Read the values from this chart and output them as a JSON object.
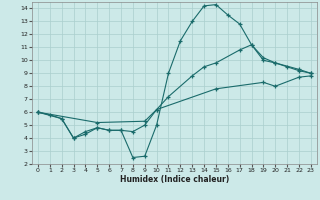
{
  "xlabel": "Humidex (Indice chaleur)",
  "bg_color": "#cce9e8",
  "grid_color": "#aacfce",
  "line_color": "#1a6b6b",
  "xlim": [
    -0.5,
    23.5
  ],
  "ylim": [
    2,
    14.5
  ],
  "xticks": [
    0,
    1,
    2,
    3,
    4,
    5,
    6,
    7,
    8,
    9,
    10,
    11,
    12,
    13,
    14,
    15,
    16,
    17,
    18,
    19,
    20,
    21,
    22,
    23
  ],
  "yticks": [
    2,
    3,
    4,
    5,
    6,
    7,
    8,
    9,
    10,
    11,
    12,
    13,
    14
  ],
  "line1_x": [
    0,
    1,
    2,
    3,
    4,
    5,
    6,
    7,
    8,
    9,
    10,
    11,
    12,
    13,
    14,
    15,
    16,
    17,
    18,
    19,
    20,
    21,
    22,
    23
  ],
  "line1_y": [
    6.0,
    5.8,
    5.5,
    4.0,
    4.5,
    4.8,
    4.6,
    4.6,
    2.5,
    2.6,
    5.0,
    9.0,
    11.5,
    13.0,
    14.2,
    14.3,
    13.5,
    12.8,
    11.2,
    10.0,
    9.8,
    9.5,
    9.2,
    9.0
  ],
  "line2_x": [
    0,
    2,
    3,
    4,
    5,
    6,
    7,
    8,
    9,
    10,
    11,
    13,
    14,
    15,
    17,
    18,
    19,
    20,
    22,
    23
  ],
  "line2_y": [
    6.0,
    5.5,
    4.0,
    4.3,
    4.8,
    4.6,
    4.6,
    4.5,
    5.0,
    6.2,
    7.2,
    8.8,
    9.5,
    9.8,
    10.8,
    11.2,
    10.2,
    9.8,
    9.3,
    9.0
  ],
  "line3_x": [
    0,
    5,
    9,
    10,
    15,
    19,
    20,
    22,
    23
  ],
  "line3_y": [
    6.0,
    5.2,
    5.3,
    6.2,
    7.8,
    8.3,
    8.0,
    8.7,
    8.8
  ]
}
